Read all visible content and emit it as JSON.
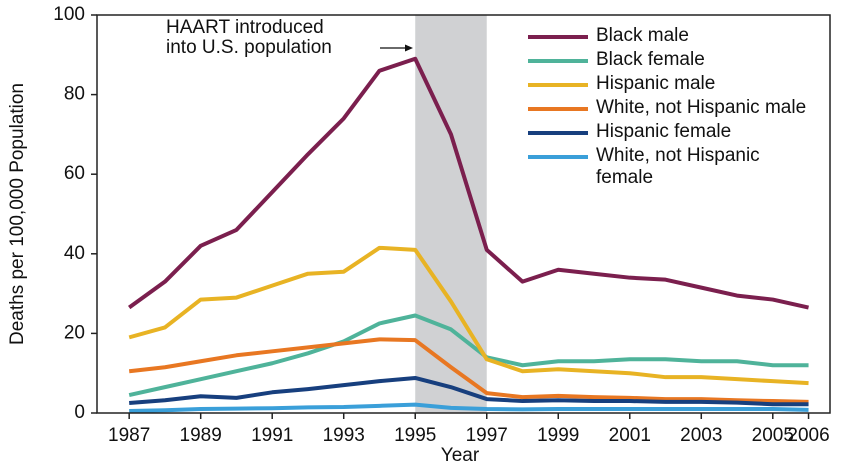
{
  "chart_data": {
    "type": "line",
    "x_label": "Year",
    "y_label": "Deaths per 100,000 Population",
    "annotation": [
      "HAART introduced",
      "into U.S. population"
    ],
    "shade": [
      1995,
      1997
    ],
    "shade_color": "#d0d1d3",
    "x": [
      1987,
      1988,
      1989,
      1990,
      1991,
      1992,
      1993,
      1994,
      1995,
      1996,
      1997,
      1998,
      1999,
      2000,
      2001,
      2002,
      2003,
      2004,
      2005,
      2006
    ],
    "series": [
      {
        "name": "Black male",
        "color": "#7b1f4e",
        "values": [
          26.5,
          33,
          42,
          46,
          55.5,
          65,
          74,
          86,
          89,
          70,
          41,
          33,
          36,
          35,
          34,
          33.5,
          31.5,
          29.5,
          28.5,
          26.5
        ]
      },
      {
        "name": "Black female",
        "color": "#4fb39a",
        "values": [
          4.5,
          6.5,
          8.5,
          10.5,
          12.5,
          15,
          18,
          22.5,
          24.5,
          21,
          14,
          12,
          13,
          13,
          13.5,
          13.5,
          13,
          13,
          12,
          12
        ]
      },
      {
        "name": "Hispanic male",
        "color": "#e8b324",
        "values": [
          19,
          21.5,
          28.5,
          29,
          32,
          35,
          35.5,
          41.5,
          41,
          28,
          13.5,
          10.5,
          11,
          10.5,
          10,
          9,
          9,
          8.5,
          8,
          7.5
        ]
      },
      {
        "name": "White, not Hispanic male",
        "color": "#e87722",
        "values": [
          10.5,
          11.5,
          13,
          14.5,
          15.5,
          16.5,
          17.5,
          18.5,
          18.3,
          11.5,
          5,
          4,
          4.3,
          4,
          3.8,
          3.5,
          3.5,
          3.2,
          3,
          2.8
        ]
      },
      {
        "name": "Hispanic female",
        "color": "#173f7e",
        "values": [
          2.5,
          3.2,
          4.2,
          3.8,
          5.2,
          6,
          7,
          8,
          8.8,
          6.5,
          3.5,
          3,
          3.2,
          3,
          3,
          2.8,
          2.8,
          2.6,
          2.2,
          2.2
        ]
      },
      {
        "name": "White, not Hispanic female",
        "color": "#3a9fd9",
        "values": [
          0.5,
          0.7,
          1,
          1.1,
          1.2,
          1.4,
          1.5,
          1.8,
          2.1,
          1.3,
          1,
          0.9,
          1,
          1,
          1,
          1,
          1,
          1,
          1,
          0.8
        ]
      }
    ],
    "xlim": [
      1986.1,
      2006.6
    ],
    "ylim": [
      0,
      100
    ],
    "xticks": [
      1987,
      1989,
      1991,
      1993,
      1995,
      1997,
      1999,
      2001,
      2003,
      2005,
      2006
    ],
    "yticks": [
      0,
      20,
      40,
      60,
      80,
      100
    ],
    "grid": false,
    "legend": "upper-right"
  }
}
